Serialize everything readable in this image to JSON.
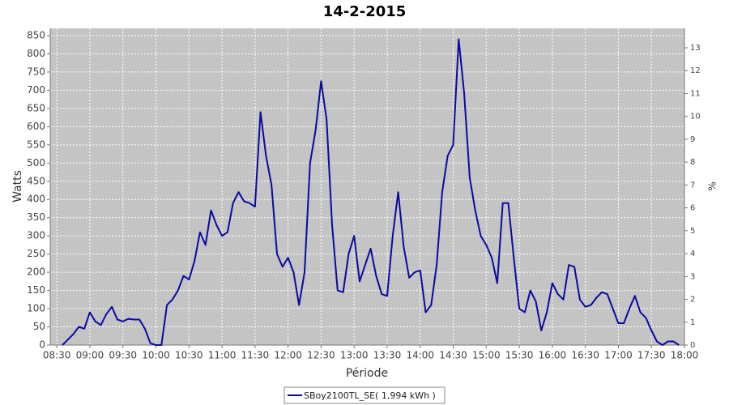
{
  "chart_data": {
    "type": "line",
    "title": "14-2-2015",
    "xlabel": "Période",
    "ylabel": "Watts",
    "y2label": "%",
    "x": [
      "08:35",
      "08:40",
      "08:45",
      "08:50",
      "08:55",
      "09:00",
      "09:05",
      "09:10",
      "09:15",
      "09:20",
      "09:25",
      "09:30",
      "09:35",
      "09:40",
      "09:45",
      "09:50",
      "09:55",
      "10:00",
      "10:05",
      "10:10",
      "10:15",
      "10:20",
      "10:25",
      "10:30",
      "10:35",
      "10:40",
      "10:45",
      "10:50",
      "10:55",
      "11:00",
      "11:05",
      "11:10",
      "11:15",
      "11:20",
      "11:25",
      "11:30",
      "11:35",
      "11:40",
      "11:45",
      "11:50",
      "11:55",
      "12:00",
      "12:05",
      "12:10",
      "12:15",
      "12:20",
      "12:25",
      "12:30",
      "12:35",
      "12:40",
      "12:45",
      "12:50",
      "12:55",
      "13:00",
      "13:05",
      "13:10",
      "13:15",
      "13:20",
      "13:25",
      "13:30",
      "13:35",
      "13:40",
      "13:45",
      "13:50",
      "13:55",
      "14:00",
      "14:05",
      "14:10",
      "14:15",
      "14:20",
      "14:25",
      "14:30",
      "14:35",
      "14:40",
      "14:45",
      "14:50",
      "14:55",
      "15:00",
      "15:05",
      "15:10",
      "15:15",
      "15:20",
      "15:25",
      "15:30",
      "15:35",
      "15:40",
      "15:45",
      "15:50",
      "15:55",
      "16:00",
      "16:05",
      "16:10",
      "16:15",
      "16:20",
      "16:25",
      "16:30",
      "16:35",
      "16:40",
      "16:45",
      "16:50",
      "16:55",
      "17:00",
      "17:05",
      "17:10",
      "17:15",
      "17:20",
      "17:25",
      "17:30",
      "17:35",
      "17:40",
      "17:45",
      "17:50",
      "17:55"
    ],
    "series": [
      {
        "name": "SBoy2100TL_SE( 1,994 kWh )",
        "color": "#0a0aa0",
        "values": [
          0,
          15,
          30,
          50,
          45,
          90,
          65,
          55,
          85,
          105,
          70,
          65,
          72,
          70,
          70,
          45,
          5,
          0,
          0,
          110,
          125,
          150,
          190,
          180,
          230,
          310,
          275,
          370,
          330,
          300,
          310,
          390,
          420,
          395,
          390,
          380,
          640,
          520,
          440,
          250,
          215,
          240,
          200,
          110,
          200,
          500,
          590,
          725,
          620,
          330,
          150,
          145,
          250,
          300,
          175,
          220,
          265,
          190,
          140,
          135,
          300,
          420,
          270,
          185,
          200,
          205,
          90,
          110,
          220,
          420,
          520,
          550,
          840,
          690,
          460,
          370,
          300,
          275,
          240,
          170,
          390,
          390,
          240,
          100,
          90,
          150,
          120,
          40,
          90,
          170,
          140,
          125,
          220,
          215,
          125,
          105,
          110,
          130,
          145,
          140,
          100,
          60,
          60,
          100,
          135,
          90,
          75,
          40,
          10,
          0,
          10,
          10,
          0
        ]
      }
    ],
    "xlim": [
      "08:24",
      "18:00"
    ],
    "xticks": [
      "08:30",
      "09:00",
      "09:30",
      "10:00",
      "10:30",
      "11:00",
      "11:30",
      "12:00",
      "12:30",
      "13:00",
      "13:30",
      "14:00",
      "14:30",
      "15:00",
      "15:30",
      "16:00",
      "16:30",
      "17:00",
      "17:30",
      "18:00"
    ],
    "ylim": [
      0,
      870
    ],
    "yticks": [
      0,
      50,
      100,
      150,
      200,
      250,
      300,
      350,
      400,
      450,
      500,
      550,
      600,
      650,
      700,
      750,
      800,
      850
    ],
    "y2lim": [
      0,
      13.85
    ],
    "y2ticks": [
      0,
      1,
      2,
      3,
      4,
      5,
      6,
      7,
      8,
      9,
      10,
      11,
      12,
      13
    ],
    "grid": true
  }
}
